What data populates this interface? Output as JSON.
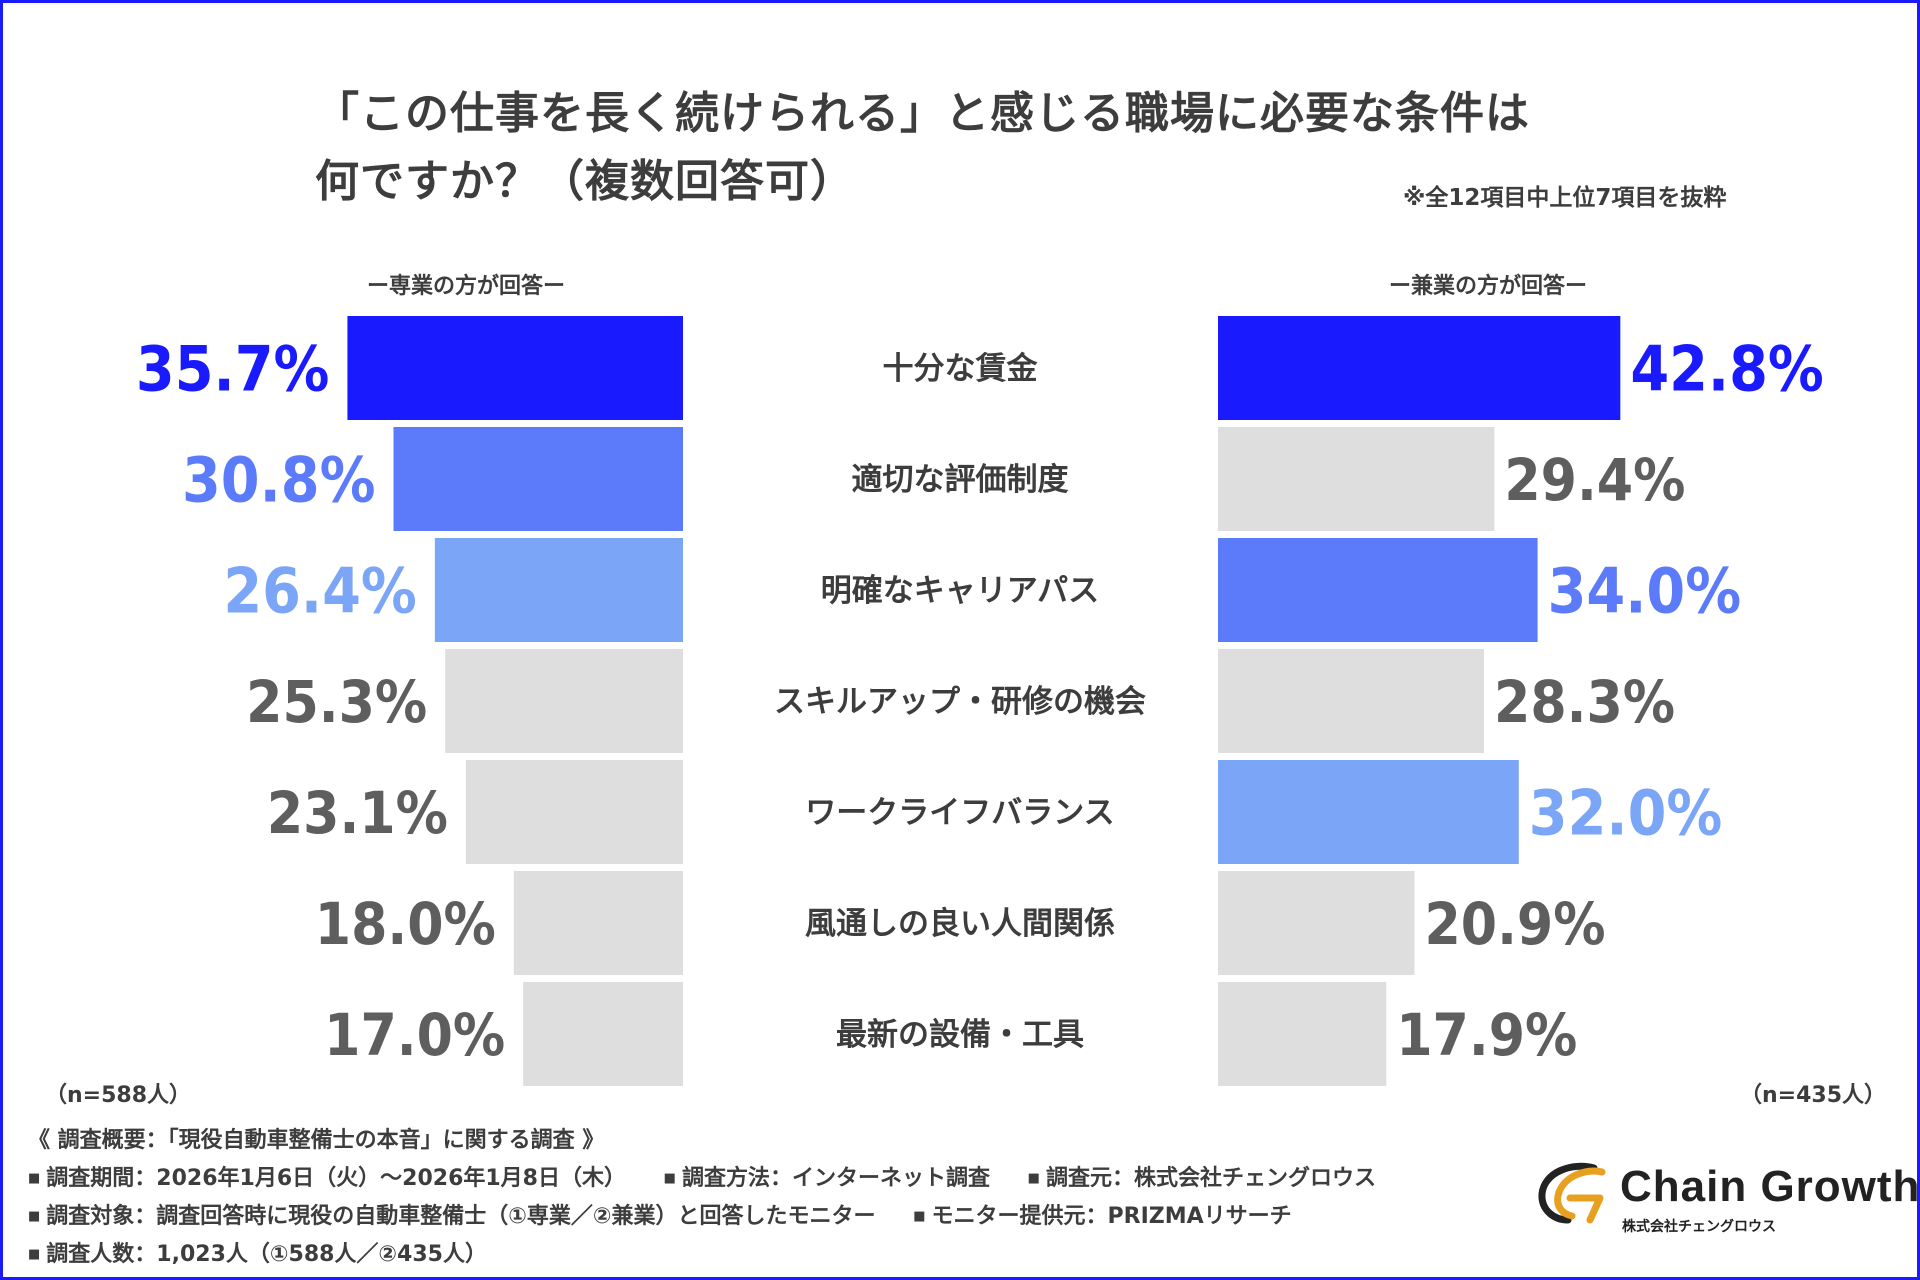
{
  "title_line1": "「この仕事を長く続けられる」と感じる職場に必要な条件は",
  "title_line2": "何ですか？（複数回答可）",
  "note": "※全12項目中上位7項目を抜粋",
  "chart_data": {
    "type": "bar",
    "title": "「この仕事を長く続けられる」と感じる職場に必要な条件は何ですか？（複数回答可）",
    "categories": [
      "十分な賃金",
      "適切な評価制度",
      "明確なキャリアパス",
      "スキルアップ・研修の機会",
      "ワークライフバランス",
      "風通しの良い人間関係",
      "最新の設備・工具"
    ],
    "unit": "%",
    "series": [
      {
        "name": "ー専業の方が回答ー",
        "values": [
          35.7,
          30.8,
          26.4,
          25.3,
          23.1,
          18.0,
          17.0
        ],
        "sample": "（n=588人）"
      },
      {
        "name": "ー兼業の方が回答ー",
        "values": [
          42.8,
          29.4,
          34.0,
          28.3,
          32.0,
          20.9,
          17.9
        ],
        "sample": "（n=435人）"
      }
    ],
    "rank_colors": [
      "#1a1aff",
      "#5b7bfa",
      "#7ba5f7"
    ],
    "other_bar_color": "#dedede",
    "other_text_color": "#5e5e5e"
  },
  "footer": {
    "heading": "《 調査概要：「現役自動車整備士の本音」に関する調査 》",
    "period": "調査期間：2026年1月6日（火）～2026年1月8日（木）",
    "method": "調査方法：インターネット調査",
    "source": "調査元：株式会社チェングロウス",
    "target": "調査対象：調査回答時に現役の自動車整備士（①専業／②兼業）と回答したモニター",
    "provider": "モニター提供元：PRIZMAリサーチ",
    "count": "調査人数：1,023人（①588人／②435人）"
  },
  "logo": {
    "name": "Chain Growth",
    "sub": "株式会社チェングロウス",
    "accent": "#e8a020"
  }
}
